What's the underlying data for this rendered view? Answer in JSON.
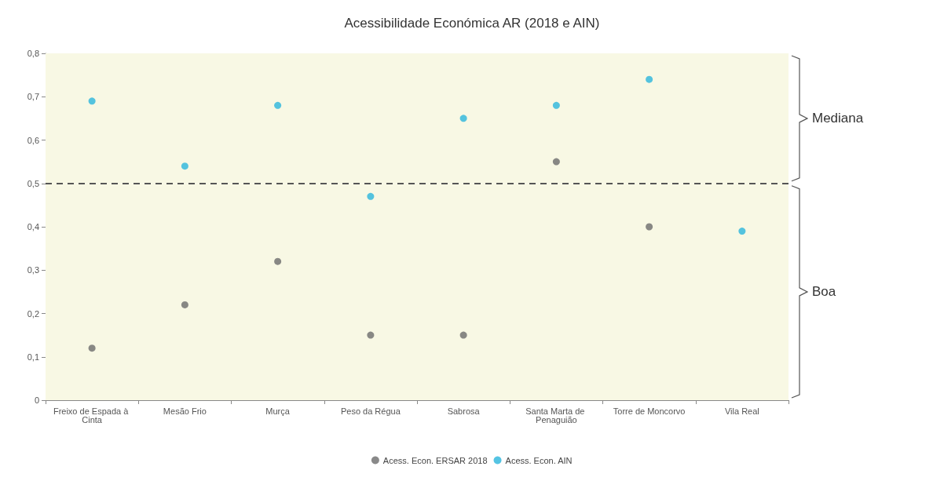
{
  "chart_data": {
    "type": "scatter",
    "title": "Acessibilidade Económica AR (2018 e AIN)",
    "categories": [
      "Freixo de Espada à Cinta",
      "Mesão Frio",
      "Murça",
      "Peso da Régua",
      "Sabrosa",
      "Santa Marta de Penaguião",
      "Torre de Moncorvo",
      "Vila Real"
    ],
    "series": [
      {
        "name": "Acess. Econ. ERSAR 2018",
        "color": "#6b6b6b",
        "values": [
          0.12,
          0.22,
          0.32,
          0.15,
          0.15,
          0.55,
          0.4,
          null
        ]
      },
      {
        "name": "Acess. Econ. AIN",
        "color": "#2bb5dc",
        "values": [
          0.69,
          0.54,
          0.68,
          0.47,
          0.65,
          0.68,
          0.74,
          0.39
        ]
      }
    ],
    "ylim": [
      0,
      0.8
    ],
    "yticks": [
      0,
      {
        "value": 0.1,
        "label": "0,1"
      },
      {
        "value": 0.2,
        "label": "0,2"
      },
      {
        "value": 0.3,
        "label": "0,3"
      },
      {
        "value": 0.4,
        "label": "0,4"
      },
      {
        "value": 0.5,
        "label": "0,5"
      },
      {
        "value": 0.6,
        "label": "0,6"
      },
      {
        "value": 0.7,
        "label": "0,7"
      },
      {
        "value": 0.8,
        "label": "0,8"
      }
    ],
    "ref_lines": [
      {
        "axis": "y",
        "value": 0.5,
        "color": "#555555",
        "line_style": "dashed"
      }
    ],
    "bands": [
      {
        "axis": "y",
        "from": 0.5,
        "to": 0.8,
        "label": "Mediana",
        "color": "#f8f8e4"
      },
      {
        "axis": "y",
        "from": 0,
        "to": 0.5,
        "label": "Boa",
        "color": "#f8f8e4"
      }
    ],
    "grid": false,
    "legend": "bottom",
    "marker": "circle"
  }
}
